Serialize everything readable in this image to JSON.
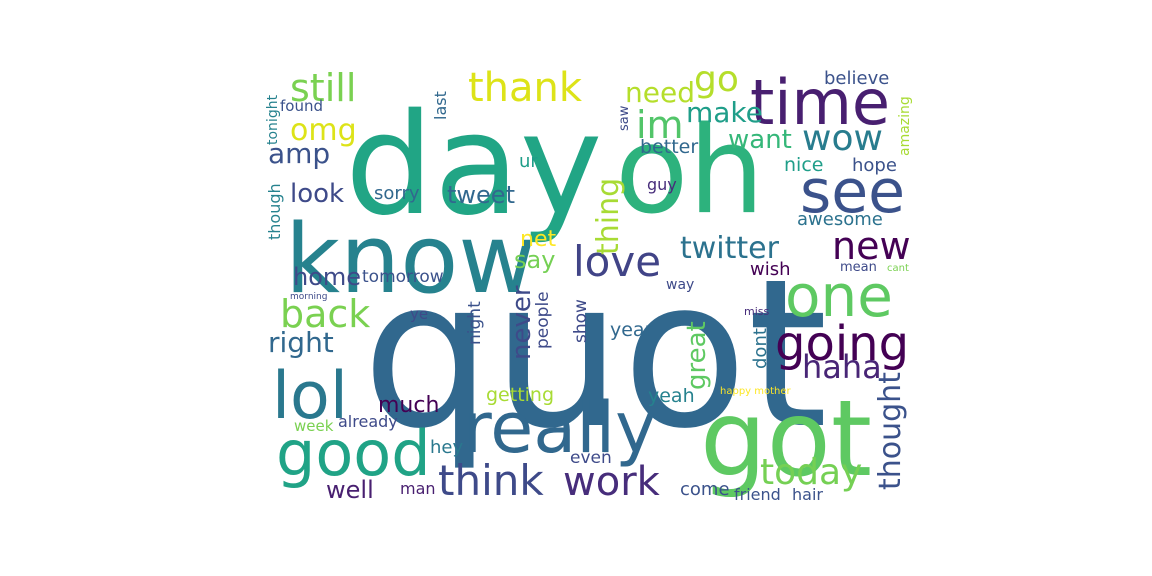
{
  "words": [
    {
      "text": "quot",
      "color": "#31688e"
    },
    {
      "text": "day",
      "color": "#21a585"
    },
    {
      "text": "oh",
      "color": "#2db27d"
    },
    {
      "text": "know",
      "color": "#26828e"
    },
    {
      "text": "got",
      "color": "#5ec962"
    },
    {
      "text": "really",
      "color": "#31688e"
    },
    {
      "text": "time",
      "color": "#481f70"
    },
    {
      "text": "see",
      "color": "#3b528b"
    },
    {
      "text": "one",
      "color": "#5ec962"
    },
    {
      "text": "lol",
      "color": "#2a788e"
    },
    {
      "text": "good",
      "color": "#20a386"
    },
    {
      "text": "going",
      "color": "#440154"
    },
    {
      "text": "think",
      "color": "#3e4a89"
    },
    {
      "text": "work",
      "color": "#472d7b"
    },
    {
      "text": "today",
      "color": "#75d054"
    },
    {
      "text": "love",
      "color": "#414487"
    },
    {
      "text": "new",
      "color": "#440154"
    },
    {
      "text": "thank",
      "color": "#dde318"
    },
    {
      "text": "still",
      "color": "#7ad151"
    },
    {
      "text": "back",
      "color": "#7ad151"
    },
    {
      "text": "wow",
      "color": "#287c8e"
    },
    {
      "text": "go",
      "color": "#b5de2b"
    },
    {
      "text": "im",
      "color": "#52c569"
    },
    {
      "text": "haha",
      "color": "#482576"
    },
    {
      "text": "twitter",
      "color": "#2c728e"
    },
    {
      "text": "thought",
      "color": "#3b528b"
    },
    {
      "text": "omg",
      "color": "#dde318"
    },
    {
      "text": "amp",
      "color": "#3b528b"
    },
    {
      "text": "need",
      "color": "#b5de2b"
    },
    {
      "text": "make",
      "color": "#1f9e89"
    },
    {
      "text": "want",
      "color": "#35b779"
    },
    {
      "text": "look",
      "color": "#3e4a89"
    },
    {
      "text": "tweet",
      "color": "#31688e"
    },
    {
      "text": "thing",
      "color": "#a8db34"
    },
    {
      "text": "right",
      "color": "#31688e"
    },
    {
      "text": "home",
      "color": "#3e4a89"
    },
    {
      "text": "say",
      "color": "#75d054"
    },
    {
      "text": "great",
      "color": "#5ec962"
    },
    {
      "text": "never",
      "color": "#3e4a89"
    },
    {
      "text": "much",
      "color": "#440154"
    },
    {
      "text": "well",
      "color": "#481f70"
    },
    {
      "text": "net",
      "color": "#fde725"
    },
    {
      "text": "believe",
      "color": "#3b528b"
    },
    {
      "text": "better",
      "color": "#31688e"
    },
    {
      "text": "nice",
      "color": "#1f9e89"
    },
    {
      "text": "hope",
      "color": "#3b528b"
    },
    {
      "text": "awesome",
      "color": "#2c728e"
    },
    {
      "text": "wish",
      "color": "#440154"
    },
    {
      "text": "sorry",
      "color": "#31688e"
    },
    {
      "text": "tomorrow",
      "color": "#3b528b"
    },
    {
      "text": "ur",
      "color": "#1f9e89"
    },
    {
      "text": "guy",
      "color": "#472d7b"
    },
    {
      "text": "dont",
      "color": "#2c728e"
    },
    {
      "text": "year",
      "color": "#31688e"
    },
    {
      "text": "people",
      "color": "#3e4a89"
    },
    {
      "text": "night",
      "color": "#3b528b"
    },
    {
      "text": "show",
      "color": "#3e4a89"
    },
    {
      "text": "getting",
      "color": "#a8db34"
    },
    {
      "text": "yeah",
      "color": "#26828e"
    },
    {
      "text": "hey",
      "color": "#2a788e"
    },
    {
      "text": "even",
      "color": "#3e4a89"
    },
    {
      "text": "come",
      "color": "#3b528b"
    },
    {
      "text": "friend",
      "color": "#3b528b"
    },
    {
      "text": "hair",
      "color": "#3b528b"
    },
    {
      "text": "man",
      "color": "#481f70"
    },
    {
      "text": "already",
      "color": "#3e4a89"
    },
    {
      "text": "week",
      "color": "#7ad151"
    },
    {
      "text": "ye",
      "color": "#3e4a89"
    },
    {
      "text": "tonight",
      "color": "#26828e"
    },
    {
      "text": "found",
      "color": "#3b528b"
    },
    {
      "text": "last",
      "color": "#31688e"
    },
    {
      "text": "saw",
      "color": "#3e4a89"
    },
    {
      "text": "amazing",
      "color": "#a8db34"
    },
    {
      "text": "though",
      "color": "#26828e"
    },
    {
      "text": "way",
      "color": "#3e4a89"
    },
    {
      "text": "miss",
      "color": "#472d7b"
    },
    {
      "text": "mean",
      "color": "#3e4a89"
    },
    {
      "text": "cant",
      "color": "#7ad151"
    },
    {
      "text": "morning",
      "color": "#3e4a89"
    },
    {
      "text": "happy mother",
      "color": "#fde725"
    }
  ]
}
